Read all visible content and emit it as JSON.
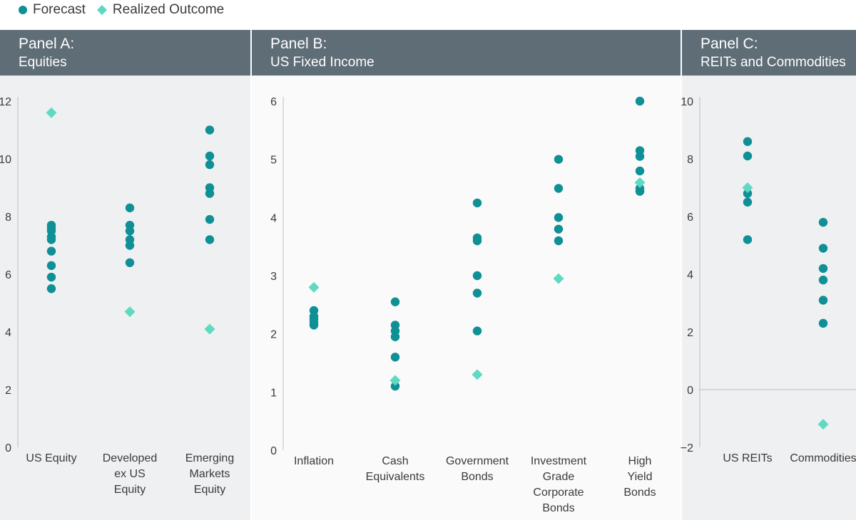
{
  "legend": {
    "forecast_label": "Forecast",
    "realized_label": "Realized Outcome",
    "forecast_color": "#0f8f96",
    "realized_color": "#5fd9c2"
  },
  "panels": [
    {
      "title_line1": "Panel A:",
      "title_line2": "Equities"
    },
    {
      "title_line1": "Panel B:",
      "title_line2": "US Fixed Income"
    },
    {
      "title_line1": "Panel C:",
      "title_line2": "REITs and Commodities"
    }
  ],
  "chart_data": [
    {
      "type": "scatter",
      "title": "Panel A: Equities",
      "ylim": [
        0,
        12
      ],
      "yticks": [
        "0",
        "2",
        "4",
        "6",
        "8",
        "10",
        "12"
      ],
      "categories": [
        [
          "US Equity"
        ],
        [
          "Developed",
          "ex US",
          "Equity"
        ],
        [
          "Emerging",
          "Markets",
          "Equity"
        ]
      ],
      "series": [
        {
          "name": "Forecast",
          "values": [
            [
              7.7,
              7.6,
              7.5,
              7.3,
              7.2,
              6.8,
              6.3,
              5.9,
              5.5
            ],
            [
              8.3,
              7.7,
              7.5,
              7.2,
              7.0,
              6.4
            ],
            [
              11.0,
              10.1,
              9.8,
              9.0,
              8.8,
              7.9,
              7.2
            ]
          ]
        },
        {
          "name": "Realized Outcome",
          "values": [
            11.6,
            4.7,
            4.1
          ]
        }
      ]
    },
    {
      "type": "scatter",
      "title": "Panel B: US Fixed Income",
      "ylim": [
        0,
        6
      ],
      "yticks": [
        "0",
        "1",
        "2",
        "3",
        "4",
        "5",
        "6"
      ],
      "categories": [
        [
          "Inflation"
        ],
        [
          "Cash",
          "Equivalents"
        ],
        [
          "Government",
          "Bonds"
        ],
        [
          "Investment",
          "Grade",
          "Corporate",
          "Bonds"
        ],
        [
          "High",
          "Yield",
          "Bonds"
        ]
      ],
      "series": [
        {
          "name": "Forecast",
          "values": [
            [
              2.4,
              2.3,
              2.25,
              2.2,
              2.15
            ],
            [
              2.55,
              2.15,
              2.05,
              1.95,
              1.6,
              1.1
            ],
            [
              4.25,
              3.65,
              3.6,
              3.0,
              2.7,
              2.05
            ],
            [
              5.0,
              4.5,
              4.0,
              3.8,
              3.6
            ],
            [
              6.0,
              5.15,
              5.05,
              4.8,
              4.5,
              4.45
            ]
          ]
        },
        {
          "name": "Realized Outcome",
          "values": [
            2.8,
            1.2,
            1.3,
            2.95,
            4.6
          ]
        }
      ]
    },
    {
      "type": "scatter",
      "title": "Panel C: REITs and Commodities",
      "ylim": [
        -2,
        10
      ],
      "yticks": [
        "−2",
        "0",
        "2",
        "4",
        "6",
        "8",
        "10"
      ],
      "categories": [
        [
          "US REITs"
        ],
        [
          "Commodities"
        ]
      ],
      "series": [
        {
          "name": "Forecast",
          "values": [
            [
              8.6,
              8.1,
              6.8,
              6.5,
              5.2
            ],
            [
              5.8,
              4.9,
              4.2,
              3.8,
              3.1,
              2.3
            ]
          ]
        },
        {
          "name": "Realized Outcome",
          "values": [
            7.0,
            -1.2
          ]
        }
      ]
    }
  ]
}
